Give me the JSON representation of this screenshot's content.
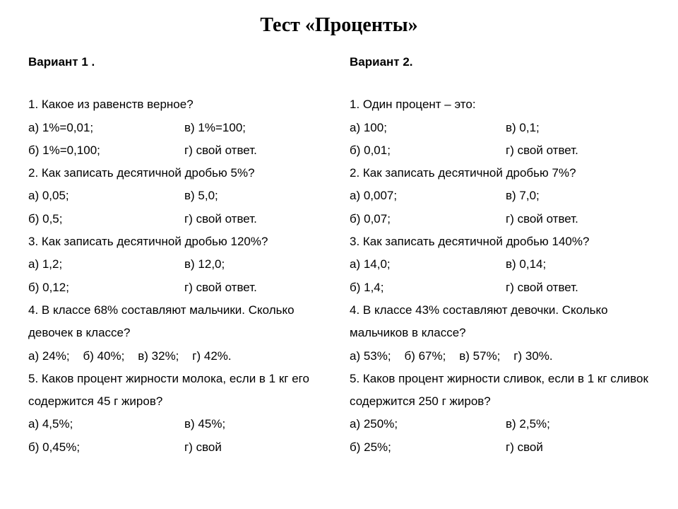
{
  "title": "Тест «Проценты»",
  "variant1": {
    "heading": "Вариант 1 .",
    "q1": {
      "text": "1. Какое из равенств верное?",
      "a": "а)  1%=0,01;",
      "v": "в)  1%=100;",
      "b": "б)  1%=0,100;",
      "g": "г) свой ответ."
    },
    "q2": {
      "text": "2. Как записать десятичной дробью 5%?",
      "a": "а)  0,05;",
      "v": "в)  5,0;",
      "b": "б)  0,5;",
      "g": "г) свой ответ."
    },
    "q3": {
      "text": "3. Как записать десятичной дробью 120%?",
      "a": "а)  1,2;",
      "v": "в)  12,0;",
      "b": "б)  0,12;",
      "g": "г) свой ответ."
    },
    "q4": {
      "text": "4. В классе 68% составляют мальчики. Сколько девочек в классе?",
      "inline": "а) 24%;    б) 40%;    в) 32%;    г) 42%."
    },
    "q5": {
      "text": "5. Каков процент жирности молока, если в 1 кг его содержится 45 г жиров?",
      "a": "а)  4,5%;",
      "v": "в)  45%;",
      "b": "б)  0,45%;",
      "g": "г) свой"
    }
  },
  "variant2": {
    "heading": "Вариант 2.",
    "q1": {
      "text": "1. Один процент – это:",
      "a": "а)  100;",
      "v": "в)  0,1;",
      "b": "б)  0,01;",
      "g": "г) свой ответ."
    },
    "q2": {
      "text": "2. Как записать десятичной дробью 7%?",
      "a": "а)  0,007;",
      "v": "в)  7,0;",
      "b": "б)  0,07;",
      "g": "г) свой ответ."
    },
    "q3": {
      "text": "3. Как записать десятичной дробью 140%?",
      "a": "а)  14,0;",
      "v": "в)  0,14;",
      "b": "б)  1,4;",
      "g": "г) свой ответ."
    },
    "q4": {
      "text": "4. В классе 43% составляют девочки. Сколько мальчиков в классе?",
      "inline": "а) 53%;    б) 67%;    в) 57%;    г) 30%."
    },
    "q5": {
      "text": "5. Каков процент жирности сливок, если в 1 кг сливок содержится 250 г жиров?",
      "a": "а)  250%;",
      "v": "в)  2,5%;",
      "b": "б)  25%;",
      "g": "г) свой"
    }
  }
}
